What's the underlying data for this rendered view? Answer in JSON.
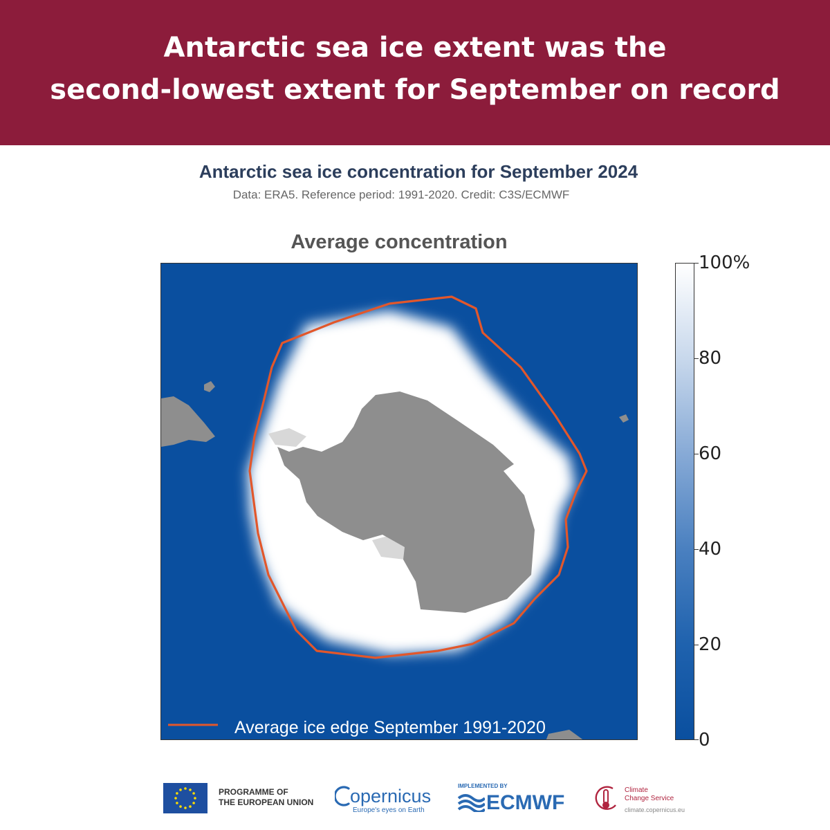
{
  "header": {
    "line1": "Antarctic sea ice extent was the",
    "line2": "second-lowest extent for September on record",
    "background_color": "#8c1c3b"
  },
  "figure": {
    "title": "Antarctic sea ice concentration for September 2024",
    "subtitle": "Data: ERA5.  Reference period: 1991-2020.  Credit: C3S/ECMWF",
    "panel_title": "Average concentration",
    "legend_label": "Average ice edge September 1991-2020",
    "colors": {
      "ocean": "#0a4f9f",
      "land": "#8e8e8e",
      "ice_shelf": "#d8d8d8",
      "sea_ice": "#ffffff",
      "ice_edge_line": "#e2572b"
    }
  },
  "colorbar": {
    "unit": "%",
    "min": 0,
    "max": 100,
    "ticks": [
      {
        "value": 0,
        "label": "0"
      },
      {
        "value": 20,
        "label": "20"
      },
      {
        "value": 40,
        "label": "40"
      },
      {
        "value": 60,
        "label": "60"
      },
      {
        "value": 80,
        "label": "80"
      },
      {
        "value": 100,
        "label": "100"
      }
    ]
  },
  "footer": {
    "eu_line1": "PROGRAMME OF",
    "eu_line2": "THE EUROPEAN UNION",
    "copernicus_name": "opernicus",
    "copernicus_tagline": "Europe's eyes on Earth",
    "implemented_by": "IMPLEMENTED BY",
    "ecmwf": "ECMWF",
    "c3s_line1": "Climate",
    "c3s_line2": "Change Service",
    "c3s_url": "climate.copernicus.eu"
  }
}
